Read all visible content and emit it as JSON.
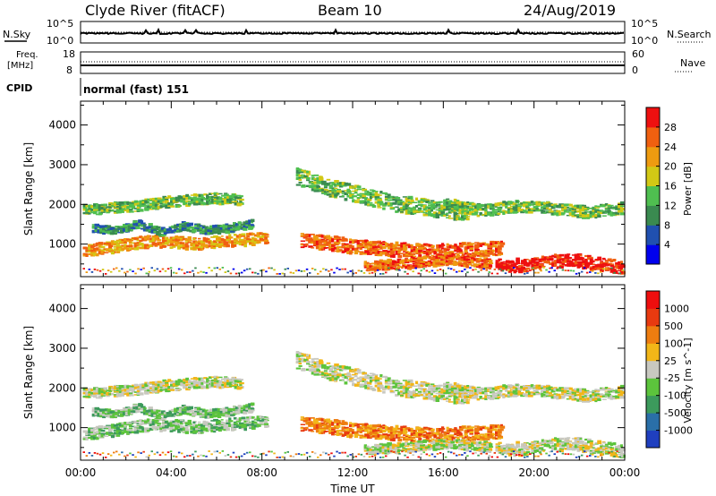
{
  "header": {
    "station": "Clyde River (fitACF)",
    "beam": "Beam 10",
    "date": "24/Aug/2019"
  },
  "top_panels": {
    "nsky_label": "N.Sky",
    "nsky_ticks": [
      "10^5",
      "10^0"
    ],
    "nsearch_label": "N.Search",
    "nsearch_ticks": [
      "10^5",
      "10^0"
    ],
    "freq_label_1": "Freq.",
    "freq_label_2": "[MHz]",
    "freq_ticks": [
      "18",
      "8"
    ],
    "nave_label": "Nave",
    "nave_ticks": [
      "60",
      "0"
    ],
    "cpid_label": "CPID",
    "cpid_text": "normal (fast) 151"
  },
  "chart_data": [
    {
      "type": "heatmap",
      "name": "Power",
      "xlabel": "",
      "ylabel": "Slant Range [km]",
      "xlim": [
        0,
        24
      ],
      "ylim": [
        180,
        4600
      ],
      "yticks": [
        "1000",
        "2000",
        "3000",
        "4000"
      ],
      "colorbar": {
        "label": "Power [dB]",
        "ticks": [
          "4",
          "8",
          "12",
          "16",
          "20",
          "24",
          "28"
        ],
        "colors": [
          "#0000ee",
          "#2050b0",
          "#3a8a50",
          "#4fbf50",
          "#d2c815",
          "#ee9b10",
          "#f06010",
          "#ee1010"
        ]
      },
      "echo_bands": [
        {
          "t0": 0.1,
          "t1": 8.1,
          "center_km": [
            820,
            900,
            1000,
            1080,
            1050,
            1000,
            1080,
            1100,
            1150
          ],
          "width_km": 300,
          "class": 5
        },
        {
          "t0": 0.1,
          "t1": 7.0,
          "center_km": [
            1850,
            1900,
            1950,
            2050,
            2100,
            2150,
            2100
          ],
          "width_km": 260,
          "class": 3
        },
        {
          "t0": 0.5,
          "t1": 7.5,
          "center_km": [
            1400,
            1350,
            1500,
            1300,
            1450,
            1350,
            1400,
            1500
          ],
          "width_km": 200,
          "class": 2
        },
        {
          "t0": 9.7,
          "t1": 18.5,
          "center_km": [
            1100,
            1000,
            900,
            850,
            800,
            850,
            900
          ],
          "width_km": 360,
          "class": 6
        },
        {
          "t0": 9.5,
          "t1": 17.0,
          "center_km": [
            2700,
            2400,
            2200,
            2000,
            1900,
            1800
          ],
          "width_km": 420,
          "class": 3
        },
        {
          "t0": 16.0,
          "t1": 23.8,
          "center_km": [
            2000,
            1850,
            1950,
            1900,
            1800,
            1900
          ],
          "width_km": 300,
          "class": 3
        },
        {
          "t0": 18.3,
          "t1": 23.8,
          "center_km": [
            500,
            450,
            550,
            600,
            500,
            400
          ],
          "width_km": 330,
          "class": 7
        },
        {
          "t0": 12.5,
          "t1": 18.0,
          "center_km": [
            450,
            500,
            600,
            500
          ],
          "width_km": 250,
          "class": 6
        }
      ]
    },
    {
      "type": "heatmap",
      "name": "Velocity",
      "xlabel": "Time UT",
      "ylabel": "Slant Range [km]",
      "xlim": [
        0,
        24
      ],
      "ylim": [
        180,
        4600
      ],
      "xticks": [
        "00:00",
        "04:00",
        "08:00",
        "12:00",
        "16:00",
        "20:00",
        "00:00"
      ],
      "yticks": [
        "1000",
        "2000",
        "3000",
        "4000"
      ],
      "colorbar": {
        "label": "Velocity [m s^-1]",
        "ticks": [
          "1000",
          "500",
          "100",
          "25",
          "-25",
          "-100",
          "-500",
          "-1000"
        ],
        "colors": [
          "#1f3fbf",
          "#2a6fa8",
          "#3c9a5c",
          "#5cc43c",
          "#c8c8c0",
          "#f2b618",
          "#ee7d10",
          "#e83a10",
          "#ee0e0e"
        ]
      },
      "echo_bands": [
        {
          "t0": 0.1,
          "t1": 8.1,
          "center_km": [
            820,
            900,
            1000,
            1080,
            1050,
            1000,
            1080,
            1100,
            1150
          ],
          "width_km": 300,
          "class": 3
        },
        {
          "t0": 0.1,
          "t1": 7.0,
          "center_km": [
            1850,
            1900,
            1950,
            2050,
            2100,
            2150,
            2100
          ],
          "width_km": 260,
          "class": 4
        },
        {
          "t0": 0.5,
          "t1": 7.5,
          "center_km": [
            1400,
            1350,
            1500,
            1300,
            1450,
            1350,
            1400,
            1500
          ],
          "width_km": 200,
          "class": 3
        },
        {
          "t0": 9.7,
          "t1": 18.5,
          "center_km": [
            1100,
            1000,
            900,
            850,
            800,
            850,
            900
          ],
          "width_km": 360,
          "class": 6
        },
        {
          "t0": 9.5,
          "t1": 17.0,
          "center_km": [
            2700,
            2400,
            2200,
            2000,
            1900,
            1800
          ],
          "width_km": 420,
          "class": 4
        },
        {
          "t0": 16.0,
          "t1": 23.8,
          "center_km": [
            2000,
            1850,
            1950,
            1900,
            1800,
            1900
          ],
          "width_km": 300,
          "class": 4
        },
        {
          "t0": 18.3,
          "t1": 23.8,
          "center_km": [
            500,
            450,
            550,
            600,
            500,
            400
          ],
          "width_km": 330,
          "class": 4
        },
        {
          "t0": 12.5,
          "t1": 18.0,
          "center_km": [
            450,
            500,
            600,
            500
          ],
          "width_km": 250,
          "class": 4
        }
      ]
    }
  ]
}
